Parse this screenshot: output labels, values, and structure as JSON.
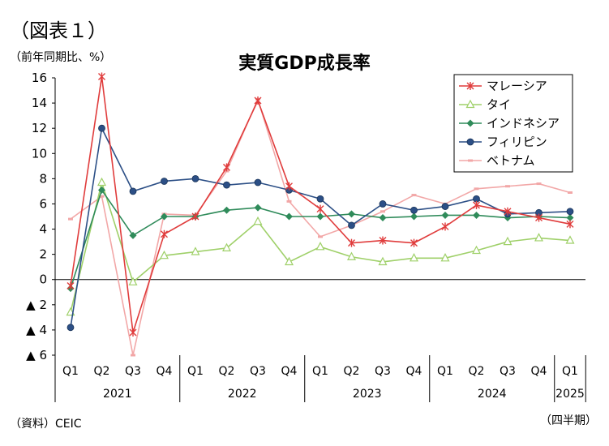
{
  "figure_label": "（図表１）",
  "unit_label": "（前年同期比、%）",
  "source_label": "（資料）CEIC",
  "period_label": "（四半期）",
  "colors": {
    "malaysia": "#e03c3c",
    "thailand": "#9fd069",
    "indonesia": "#2f8b5a",
    "philippines": "#2c4f86",
    "vietnam": "#f2a7a7"
  },
  "chart_data": {
    "type": "line",
    "title": "実質GDP成長率",
    "ylim": [
      -6,
      16
    ],
    "y_ticks": [
      16,
      14,
      12,
      10,
      8,
      6,
      4,
      2,
      0,
      -2,
      -4,
      -6
    ],
    "y_tick_labels": [
      "16",
      "14",
      "12",
      "10",
      "8",
      "6",
      "4",
      "2",
      "0",
      "▲ 2",
      "▲ 4",
      "▲ 6"
    ],
    "grid": false,
    "legend_position": "top-right",
    "categories": [
      "Q1",
      "Q2",
      "Q3",
      "Q4",
      "Q1",
      "Q2",
      "Q3",
      "Q4",
      "Q1",
      "Q2",
      "Q3",
      "Q4",
      "Q1",
      "Q2",
      "Q3",
      "Q4",
      "Q1"
    ],
    "years": [
      {
        "label": "2021",
        "count": 4
      },
      {
        "label": "2022",
        "count": 4
      },
      {
        "label": "2023",
        "count": 4
      },
      {
        "label": "2024",
        "count": 4
      },
      {
        "label": "2025",
        "count": 1
      }
    ],
    "series": [
      {
        "name": "マレーシア",
        "color": "#e03c3c",
        "marker": "star",
        "values": [
          -0.5,
          16.1,
          -4.2,
          3.6,
          5.0,
          8.9,
          14.2,
          7.4,
          5.6,
          2.9,
          3.1,
          2.9,
          4.2,
          5.9,
          5.4,
          4.9,
          4.4
        ]
      },
      {
        "name": "タイ",
        "color": "#9fd069",
        "marker": "triangle",
        "values": [
          -2.6,
          7.7,
          -0.2,
          1.9,
          2.2,
          2.5,
          4.6,
          1.4,
          2.6,
          1.8,
          1.4,
          1.7,
          1.7,
          2.3,
          3.0,
          3.3,
          3.1
        ]
      },
      {
        "name": "インドネシア",
        "color": "#2f8b5a",
        "marker": "diamond",
        "values": [
          -0.7,
          7.1,
          3.5,
          5.0,
          5.0,
          5.5,
          5.7,
          5.0,
          5.0,
          5.2,
          4.9,
          5.0,
          5.1,
          5.1,
          4.9,
          5.0,
          4.9
        ]
      },
      {
        "name": "フィリピン",
        "color": "#2c4f86",
        "marker": "circle",
        "values": [
          -3.8,
          12.0,
          7.0,
          7.8,
          8.0,
          7.5,
          7.7,
          7.1,
          6.4,
          4.3,
          6.0,
          5.5,
          5.8,
          6.4,
          5.2,
          5.3,
          5.4
        ]
      },
      {
        "name": "ベトナム",
        "color": "#f2a7a7",
        "marker": "square",
        "values": [
          4.8,
          6.6,
          -6.0,
          5.2,
          5.1,
          8.6,
          14.3,
          6.2,
          3.4,
          4.3,
          5.4,
          6.7,
          6.0,
          7.2,
          7.4,
          7.6,
          6.9
        ]
      }
    ]
  }
}
